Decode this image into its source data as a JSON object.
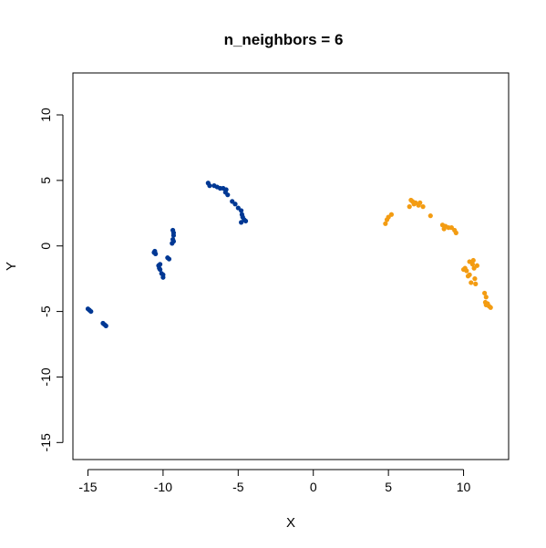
{
  "chart_data": {
    "type": "scatter",
    "title": "n_neighbors = 6",
    "xlabel": "X",
    "ylabel": "Y",
    "xlim": [
      -16,
      13
    ],
    "ylim": [
      -16.3,
      13.2
    ],
    "xticks": [
      -15,
      -10,
      -5,
      0,
      5,
      10
    ],
    "yticks": [
      -15,
      -10,
      -5,
      0,
      5,
      10
    ],
    "grid": false,
    "legend": "none",
    "series": [
      {
        "color": "#003894",
        "points": [
          [
            -15.0,
            -4.8
          ],
          [
            -14.9,
            -4.9
          ],
          [
            -14.8,
            -5.0
          ],
          [
            -14.0,
            -5.9
          ],
          [
            -13.9,
            -6.0
          ],
          [
            -13.8,
            -6.1
          ],
          [
            -10.6,
            -0.5
          ],
          [
            -10.55,
            -0.4
          ],
          [
            -10.5,
            -0.6
          ],
          [
            -10.3,
            -1.5
          ],
          [
            -10.25,
            -1.7
          ],
          [
            -10.2,
            -1.8
          ],
          [
            -10.1,
            -2.1
          ],
          [
            -10.0,
            -2.2
          ],
          [
            -10.0,
            -2.4
          ],
          [
            -10.2,
            -1.4
          ],
          [
            -9.7,
            -0.9
          ],
          [
            -9.6,
            -1.0
          ],
          [
            -9.4,
            0.2
          ],
          [
            -9.35,
            0.5
          ],
          [
            -9.3,
            0.8
          ],
          [
            -9.3,
            1.0
          ],
          [
            -9.35,
            1.2
          ],
          [
            -9.3,
            0.35
          ],
          [
            -7.0,
            4.8
          ],
          [
            -6.9,
            4.6
          ],
          [
            -6.6,
            4.6
          ],
          [
            -6.4,
            4.5
          ],
          [
            -6.2,
            4.4
          ],
          [
            -6.0,
            4.4
          ],
          [
            -5.85,
            4.1
          ],
          [
            -5.8,
            4.3
          ],
          [
            -5.7,
            3.9
          ],
          [
            -5.4,
            3.4
          ],
          [
            -5.2,
            3.2
          ],
          [
            -5.0,
            2.9
          ],
          [
            -4.8,
            2.7
          ],
          [
            -4.75,
            2.4
          ],
          [
            -4.7,
            2.2
          ],
          [
            -4.6,
            2.0
          ],
          [
            -4.5,
            1.9
          ],
          [
            -4.8,
            1.8
          ]
        ]
      },
      {
        "color": "#f39c12",
        "points": [
          [
            4.8,
            1.7
          ],
          [
            4.9,
            2.0
          ],
          [
            5.0,
            2.2
          ],
          [
            5.2,
            2.4
          ],
          [
            6.4,
            3.0
          ],
          [
            6.5,
            3.5
          ],
          [
            6.6,
            3.4
          ],
          [
            6.7,
            3.2
          ],
          [
            6.8,
            3.3
          ],
          [
            7.0,
            3.1
          ],
          [
            7.1,
            3.3
          ],
          [
            7.3,
            3.0
          ],
          [
            7.8,
            2.3
          ],
          [
            8.6,
            1.6
          ],
          [
            8.7,
            1.3
          ],
          [
            8.8,
            1.5
          ],
          [
            9.0,
            1.4
          ],
          [
            9.2,
            1.4
          ],
          [
            9.4,
            1.2
          ],
          [
            9.5,
            1.0
          ],
          [
            10.0,
            -1.8
          ],
          [
            10.1,
            -1.7
          ],
          [
            10.2,
            -1.9
          ],
          [
            10.3,
            -2.3
          ],
          [
            10.4,
            -2.2
          ],
          [
            10.4,
            -1.2
          ],
          [
            10.5,
            -2.8
          ],
          [
            10.6,
            -1.4
          ],
          [
            10.65,
            -1.1
          ],
          [
            10.7,
            -1.7
          ],
          [
            10.75,
            -2.5
          ],
          [
            10.8,
            -2.9
          ],
          [
            10.9,
            -1.5
          ],
          [
            11.4,
            -3.6
          ],
          [
            11.45,
            -4.3
          ],
          [
            11.5,
            -4.5
          ],
          [
            11.6,
            -4.4
          ],
          [
            11.7,
            -4.6
          ],
          [
            11.8,
            -4.7
          ],
          [
            11.5,
            -3.9
          ]
        ]
      }
    ]
  }
}
